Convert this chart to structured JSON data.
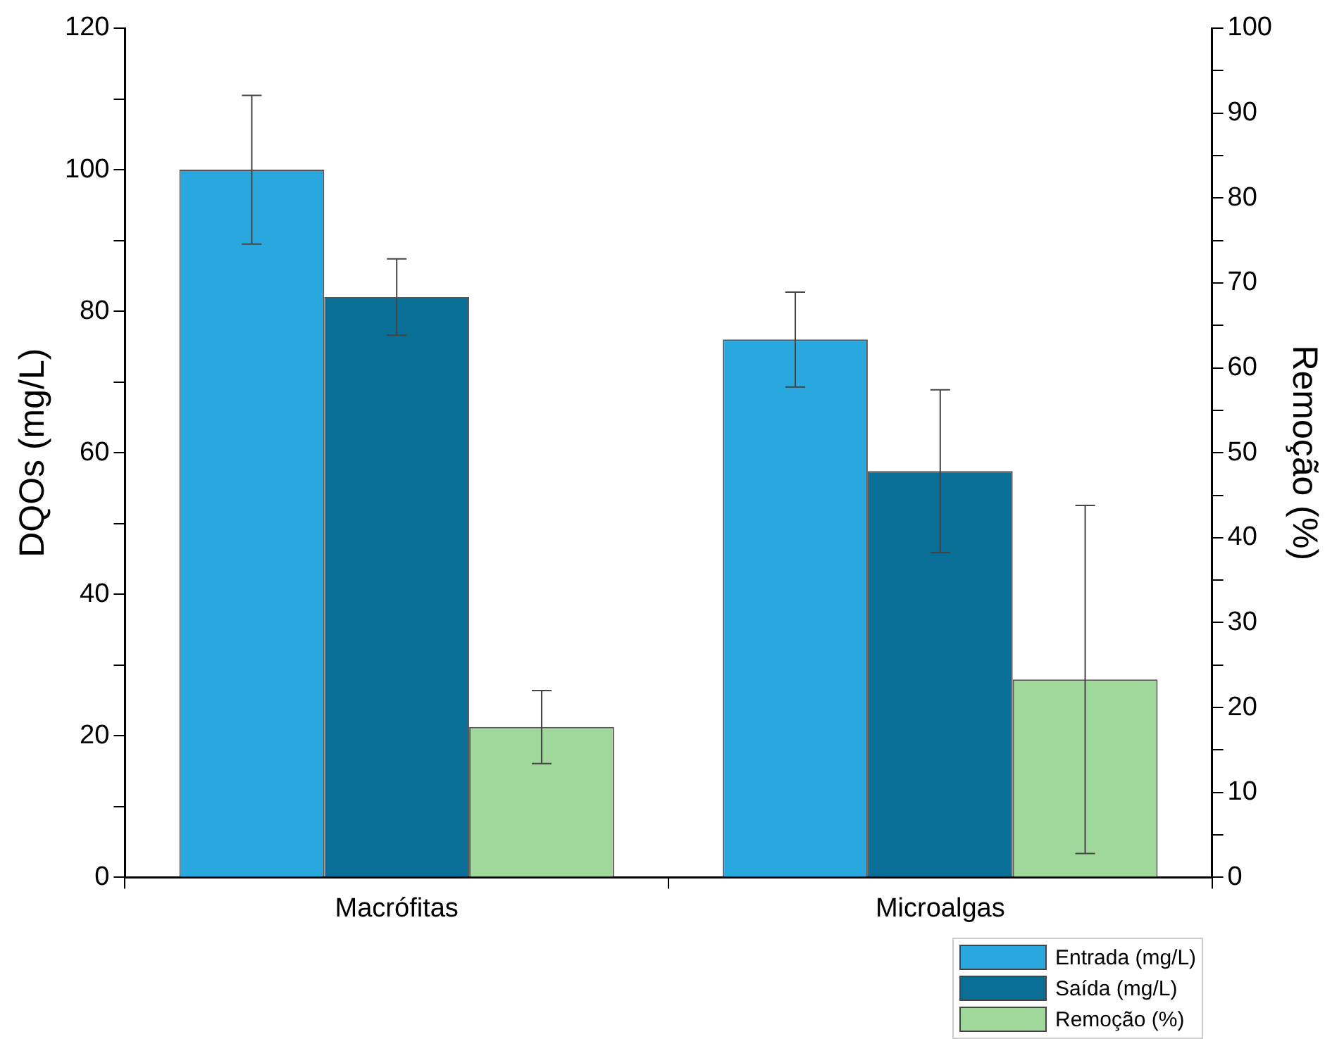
{
  "chart_data": {
    "type": "bar",
    "ylabel": "DQOs (mg/L)",
    "y2label": "Remoção (%)",
    "categories": [
      "Macrófitas",
      "Microalgas"
    ],
    "series": [
      {
        "name": "Entrada (mg/L)",
        "color": "#29a8e0",
        "values": [
          100,
          76
        ],
        "errors": [
          10.5,
          6.7
        ]
      },
      {
        "name": "Saída (mg/L)",
        "color": "#0a6f96",
        "values": [
          82,
          57.4
        ],
        "errors": [
          5.4,
          11.5
        ]
      },
      {
        "name": "Remoção (%)",
        "color": "#9fd89a",
        "axis": "y2",
        "values": [
          17.7,
          23.3
        ],
        "errors": [
          4.3,
          20.5
        ]
      }
    ],
    "ylim": [
      0,
      120
    ],
    "yticks": [
      0,
      {
        "value": 10,
        "label": null
      },
      20,
      {
        "value": 30,
        "label": null
      },
      40,
      {
        "value": 50,
        "label": null
      },
      60,
      {
        "value": 70,
        "label": null
      },
      80,
      {
        "value": 90,
        "label": null
      },
      100,
      {
        "value": 110,
        "label": null
      },
      120
    ],
    "y2lim": [
      0,
      100
    ],
    "y2ticks": [
      0,
      {
        "value": 5,
        "label": null
      },
      10,
      {
        "value": 15,
        "label": null
      },
      20,
      {
        "value": 25,
        "label": null
      },
      30,
      {
        "value": 35,
        "label": null
      },
      40,
      {
        "value": 45,
        "label": null
      },
      50,
      {
        "value": 55,
        "label": null
      },
      60,
      {
        "value": 65,
        "label": null
      },
      70,
      {
        "value": 75,
        "label": null
      },
      80,
      {
        "value": 85,
        "label": null
      },
      90,
      {
        "value": 95,
        "label": null
      },
      100
    ],
    "grid": false,
    "legend": "bottom right"
  }
}
